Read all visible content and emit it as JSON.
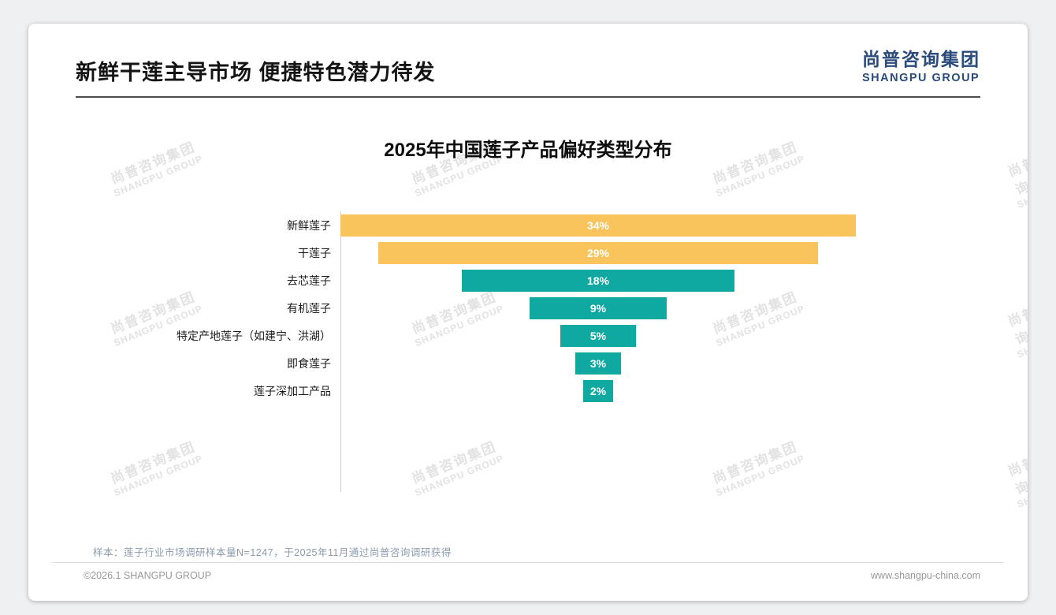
{
  "header": {
    "title": "新鲜干莲主导市场 便捷特色潜力待发"
  },
  "logo": {
    "cn": "尚普咨询集团",
    "en": "SHANGPU GROUP"
  },
  "watermark": {
    "line1": "尚普咨询集团",
    "line2": "SHANGPU GROUP"
  },
  "chart_data": {
    "type": "bar",
    "variant": "horizontal-centered-funnel",
    "title": "2025年中国莲子产品偏好类型分布",
    "categories": [
      "新鲜莲子",
      "干莲子",
      "去芯莲子",
      "有机莲子",
      "特定产地莲子（如建宁、洪湖）",
      "即食莲子",
      "莲子深加工产品"
    ],
    "values": [
      34,
      29,
      18,
      9,
      5,
      3,
      2
    ],
    "value_labels": [
      "34%",
      "29%",
      "18%",
      "9%",
      "5%",
      "3%",
      "2%"
    ],
    "unit": "%",
    "bar_colors": [
      "#F9C45C",
      "#F9C45C",
      "#10A9A2",
      "#10A9A2",
      "#10A9A2",
      "#10A9A2",
      "#10A9A2"
    ],
    "xlim": [
      0,
      34
    ],
    "grid": false,
    "legend": false
  },
  "footer": {
    "note": "样本：莲子行业市场调研样本量N=1247，于2025年11月通过尚普咨询调研获得",
    "copyright": "©2026.1 SHANGPU GROUP",
    "website": "www.shangpu-china.com"
  },
  "colors": {
    "yellow": "#F9C45C",
    "teal": "#10A9A2",
    "logo_blue": "#2A4B7C",
    "note_gray": "#8B9BAE"
  }
}
